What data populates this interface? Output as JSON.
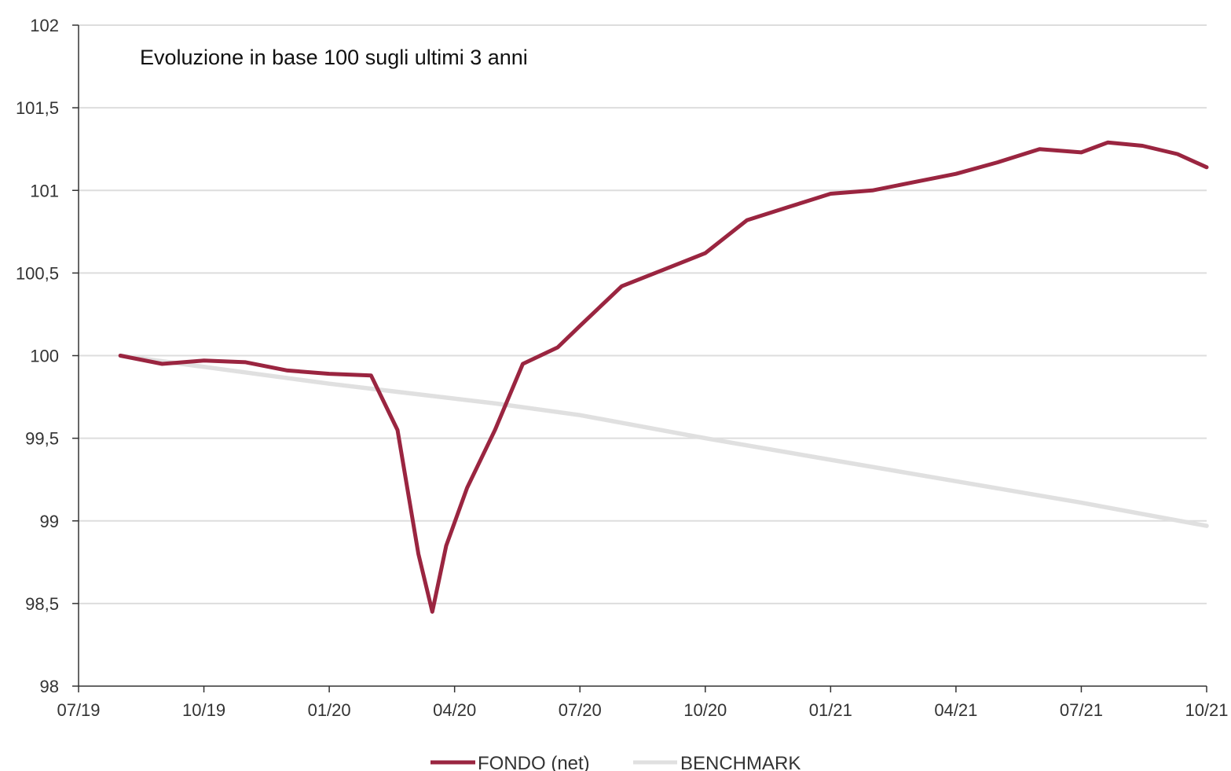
{
  "colors": {
    "fondo": "#9a2540",
    "benchmark": "#e0e0e0",
    "grid": "#dddddd",
    "axis": "#333333"
  },
  "chart_data": {
    "type": "line",
    "title": "Evoluzione in base 100 sugli ultimi 3 anni",
    "xlabel": "",
    "ylabel": "",
    "ylim": [
      98,
      102
    ],
    "xlim": [
      "2019-07",
      "2021-10"
    ],
    "grid": true,
    "legend_position": "bottom",
    "y_ticks": [
      "98",
      "98,5",
      "99",
      "99,5",
      "100",
      "100,5",
      "101",
      "101,5",
      "102"
    ],
    "x_ticks": [
      "07/19",
      "10/19",
      "01/20",
      "04/20",
      "07/20",
      "10/20",
      "01/21",
      "04/21",
      "07/21",
      "10/21"
    ],
    "series": [
      {
        "name": "FONDO (net)",
        "x": [
          "2019-08",
          "2019-09",
          "2019-10",
          "2019-11",
          "2019-12",
          "2020-01",
          "2020-02-01",
          "2020-02-20",
          "2020-03-05",
          "2020-03-15",
          "2020-03-25",
          "2020-04-10",
          "2020-04-30",
          "2020-05-20",
          "2020-06-15",
          "2020-07-01",
          "2020-08-01",
          "2020-09-01",
          "2020-10-01",
          "2020-11-01",
          "2020-12-01",
          "2021-01-01",
          "2021-02-01",
          "2021-03-01",
          "2021-04-01",
          "2021-05-01",
          "2021-06-01",
          "2021-07-01",
          "2021-07-20",
          "2021-08-15",
          "2021-09-10",
          "2021-10-01"
        ],
        "values": [
          100.0,
          99.95,
          99.97,
          99.96,
          99.91,
          99.89,
          99.88,
          99.55,
          98.8,
          98.45,
          98.85,
          99.2,
          99.55,
          99.95,
          100.05,
          100.18,
          100.42,
          100.52,
          100.62,
          100.82,
          100.9,
          100.98,
          101.0,
          101.05,
          101.1,
          101.17,
          101.25,
          101.23,
          101.29,
          101.27,
          101.22,
          101.14
        ]
      },
      {
        "name": "BENCHMARK",
        "x": [
          "2019-08",
          "2020-01",
          "2020-03",
          "2020-05",
          "2020-07",
          "2020-10",
          "2021-01",
          "2021-04",
          "2021-07",
          "2021-10"
        ],
        "values": [
          100.0,
          99.83,
          99.77,
          99.71,
          99.64,
          99.5,
          99.37,
          99.24,
          99.11,
          98.97
        ]
      }
    ]
  }
}
